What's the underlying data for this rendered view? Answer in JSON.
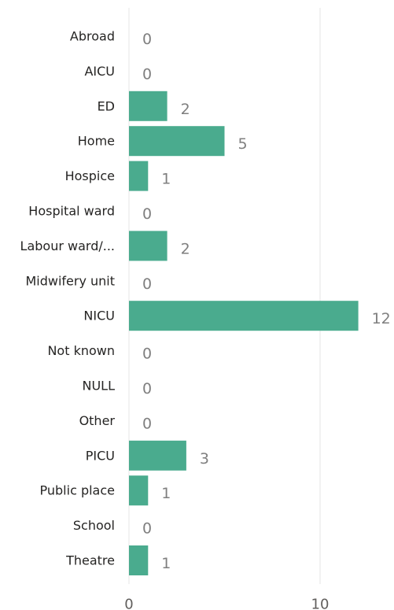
{
  "chart_data": {
    "type": "bar",
    "orientation": "horizontal",
    "categories": [
      "Abroad",
      "AICU",
      "ED",
      "Home",
      "Hospice",
      "Hospital ward",
      "Labour ward/...",
      "Midwifery unit",
      "NICU",
      "Not known",
      "NULL",
      "Other",
      "PICU",
      "Public place",
      "School",
      "Theatre"
    ],
    "values": [
      0,
      0,
      2,
      5,
      1,
      0,
      2,
      0,
      12,
      0,
      0,
      0,
      3,
      1,
      0,
      1
    ],
    "data_labels": [
      "0",
      "0",
      "2",
      "5",
      "1",
      "0",
      "2",
      "0",
      "12",
      "0",
      "0",
      "0",
      "3",
      "1",
      "0",
      "1"
    ],
    "x_ticks": [
      0,
      10
    ],
    "x_tick_labels": [
      "0",
      "10"
    ],
    "xlim": [
      0,
      12.8
    ],
    "title": "",
    "xlabel": "",
    "ylabel": "",
    "grid": true,
    "legend": "none",
    "colors": {
      "bar": "#4aab8e",
      "gridline": "#e6e6e6",
      "category_text": "#252423",
      "value_text": "#7f7f7f",
      "tick_text": "#605e5c"
    }
  }
}
